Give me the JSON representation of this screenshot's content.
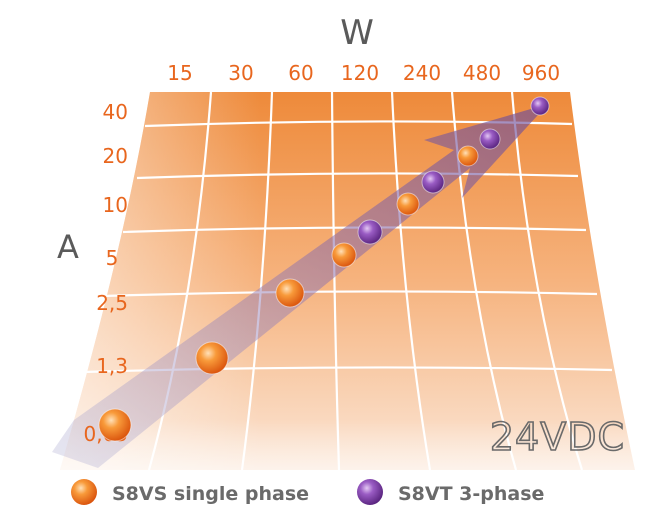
{
  "chart_data": {
    "type": "scatter",
    "title": "",
    "xlabel": "W",
    "ylabel": "A",
    "x_ticks": [
      "15",
      "30",
      "60",
      "120",
      "240",
      "480",
      "960"
    ],
    "y_ticks": [
      "40",
      "20",
      "10",
      "5",
      "2,5",
      "1,3",
      "0,65"
    ],
    "x_scale": "log",
    "y_scale": "log",
    "annotation": "24VDC",
    "grid": true,
    "legend_position": "bottom",
    "series": [
      {
        "name": "S8VS single phase",
        "color": "#f07a20",
        "points": [
          {
            "x": 15,
            "y": 0.65
          },
          {
            "x": 30,
            "y": 1.3
          },
          {
            "x": 60,
            "y": 2.5
          },
          {
            "x": 120,
            "y": 5
          },
          {
            "x": 240,
            "y": 10
          },
          {
            "x": 480,
            "y": 20
          }
        ]
      },
      {
        "name": "S8VT 3-phase",
        "color": "#7b3fa0",
        "points": [
          {
            "x": 120,
            "y": 5
          },
          {
            "x": 240,
            "y": 10
          },
          {
            "x": 480,
            "y": 20
          },
          {
            "x": 960,
            "y": 40
          }
        ]
      }
    ]
  }
}
